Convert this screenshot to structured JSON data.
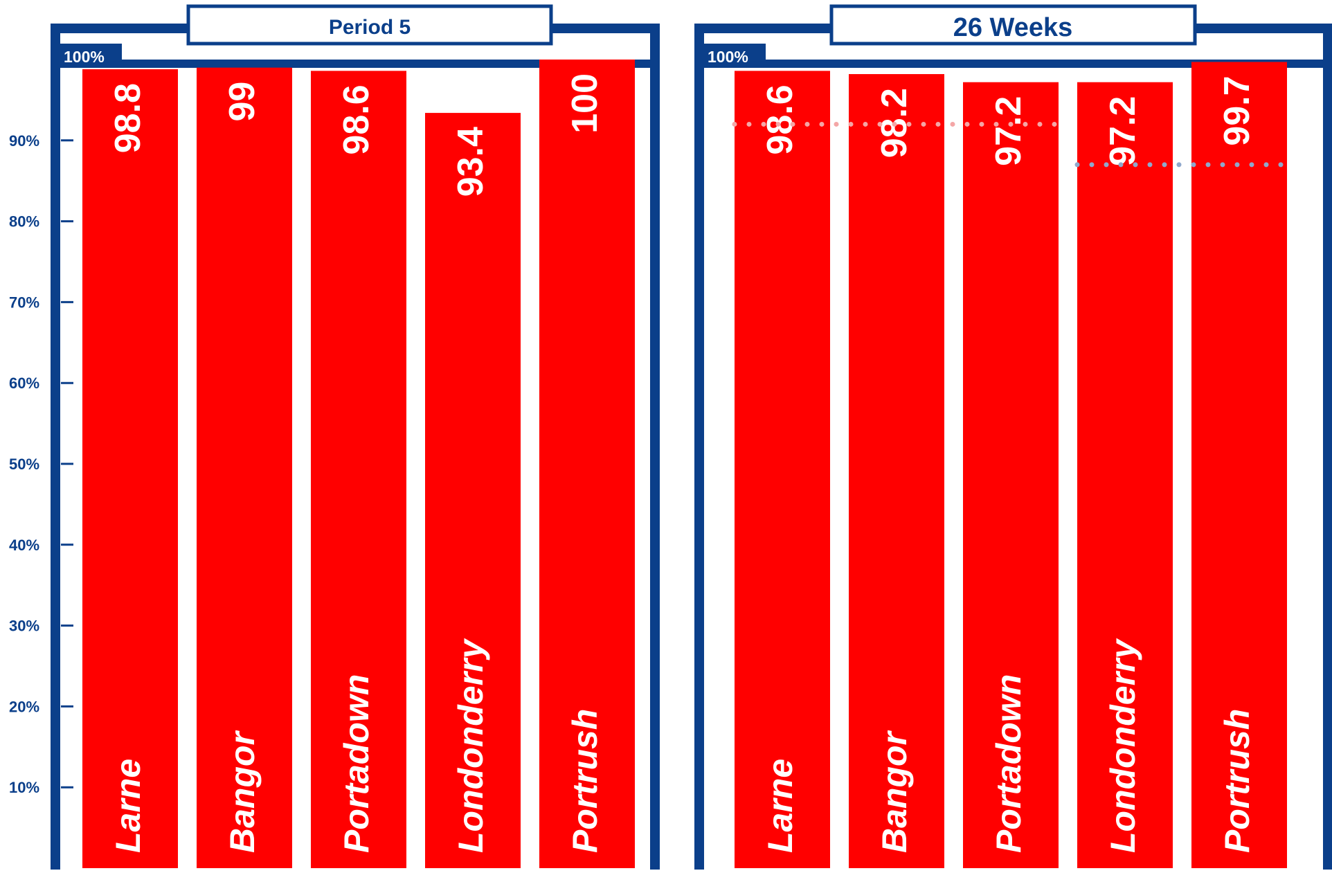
{
  "colors": {
    "frame": "#0b3f8a",
    "bar": "#ff0000",
    "bar_text": "#ffffff",
    "background": "#ffffff",
    "marker_pink": "#f4a6a6",
    "marker_blue": "#8fa8cc"
  },
  "y_axis": {
    "ticks": [
      "10%",
      "20%",
      "30%",
      "40%",
      "50%",
      "60%",
      "70%",
      "80%",
      "90%"
    ],
    "top_label": "100%"
  },
  "chart_data": [
    {
      "type": "bar",
      "title": "Period 5",
      "categories": [
        "Larne",
        "Bangor",
        "Portadown",
        "Londonderry",
        "Portrush"
      ],
      "values": [
        98.8,
        99,
        98.6,
        93.4,
        100
      ],
      "value_labels": [
        "98.8",
        "99",
        "98.6",
        "93.4",
        "100"
      ],
      "ylim": [
        0,
        100
      ],
      "grid": false
    },
    {
      "type": "bar",
      "title": "26 Weeks",
      "categories": [
        "Larne",
        "Bangor",
        "Portadown",
        "Londonderry",
        "Portrush"
      ],
      "values": [
        98.6,
        98.2,
        97.2,
        97.2,
        99.7
      ],
      "value_labels": [
        "98.6",
        "98.2",
        "97.2",
        "97.2",
        "99.7"
      ],
      "ylim": [
        0,
        100
      ],
      "grid": false,
      "reference_lines": [
        {
          "value": 92,
          "categories": [
            "Larne",
            "Bangor",
            "Portadown"
          ],
          "color": "marker_pink"
        },
        {
          "value": 87,
          "categories": [
            "Londonderry",
            "Portrush"
          ],
          "color": "marker_blue"
        }
      ]
    }
  ]
}
